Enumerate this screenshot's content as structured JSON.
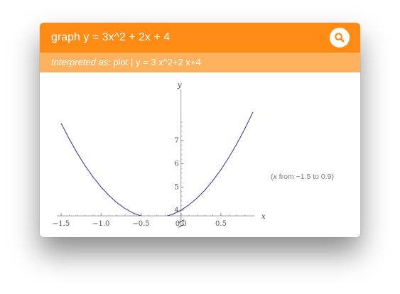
{
  "header": {
    "query": "graph y = 3x^2 + 2x + 4",
    "search_icon": "search-icon",
    "bg_color": "#ff8a14"
  },
  "interpretation": {
    "label": "Interpreted as:",
    "value": "plot | y = 3 x^2+2 x+4",
    "bg_color": "#ffb25e"
  },
  "plot": {
    "range_var": "x",
    "range_text": "from −1.5 to 0.9",
    "range_open": "(",
    "range_close": ")"
  },
  "chart_data": {
    "type": "line",
    "function": "y = 3x^2 + 2x + 4",
    "x_range": [
      -1.5,
      0.9
    ],
    "y_range": [
      3.3,
      8.0
    ],
    "xlabel": "x",
    "ylabel": "y",
    "x_ticks": [
      -1.5,
      -1.0,
      -0.5,
      0.0,
      0.5
    ],
    "x_tick_labels": [
      "−1.5",
      "−1.0",
      "−0.5",
      "0.0",
      "0.5"
    ],
    "y_ticks": [
      4,
      5,
      6,
      7
    ],
    "y_tick_labels": [
      "4",
      "5",
      "6",
      "7"
    ],
    "axis_break": true,
    "series": [
      {
        "color": "#3f3d99",
        "points": [
          [
            -1.5,
            7.75
          ],
          [
            -1.4,
            7.08
          ],
          [
            -1.3,
            6.47
          ],
          [
            -1.2,
            5.92
          ],
          [
            -1.1,
            5.43
          ],
          [
            -1.0,
            5.0
          ],
          [
            -0.9,
            4.63
          ],
          [
            -0.8,
            4.32
          ],
          [
            -0.7,
            4.07
          ],
          [
            -0.6,
            3.88
          ],
          [
            -0.5,
            3.75
          ],
          [
            -0.4,
            3.68
          ],
          [
            -0.333,
            3.667
          ],
          [
            -0.3,
            3.67
          ],
          [
            -0.2,
            3.72
          ],
          [
            -0.1,
            3.83
          ],
          [
            0.0,
            4.0
          ],
          [
            0.1,
            4.23
          ],
          [
            0.2,
            4.52
          ],
          [
            0.3,
            4.87
          ],
          [
            0.4,
            5.28
          ],
          [
            0.5,
            5.75
          ],
          [
            0.6,
            6.28
          ],
          [
            0.7,
            6.87
          ],
          [
            0.8,
            7.52
          ],
          [
            0.9,
            8.23
          ]
        ]
      }
    ],
    "grid": false
  }
}
